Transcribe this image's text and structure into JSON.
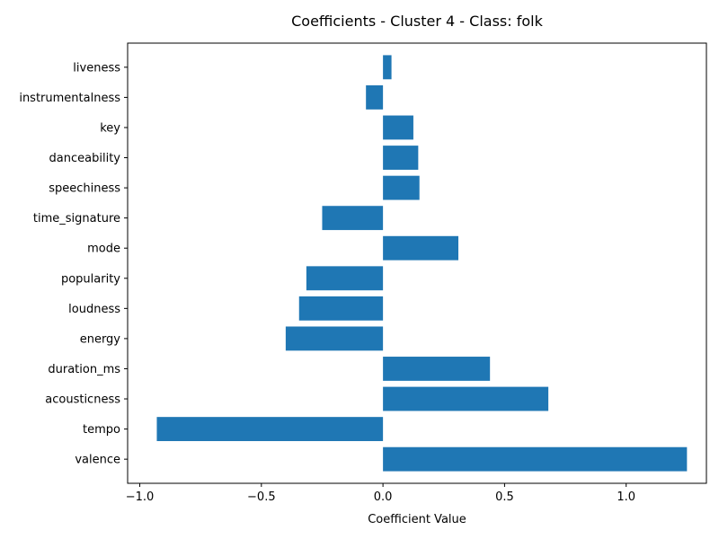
{
  "chart_data": {
    "type": "bar",
    "orientation": "horizontal",
    "title": "Coefficients - Cluster 4 - Class: folk",
    "xlabel": "Coefficient Value",
    "ylabel": "",
    "xlim": [
      -1.05,
      1.33
    ],
    "xticks": [
      -1.0,
      -0.5,
      0.0,
      0.5,
      1.0
    ],
    "xtick_labels": [
      "−1.0",
      "−0.5",
      "0.0",
      "0.5",
      "1.0"
    ],
    "categories": [
      "valence",
      "tempo",
      "acousticness",
      "duration_ms",
      "energy",
      "loudness",
      "popularity",
      "mode",
      "time_signature",
      "speechiness",
      "danceability",
      "key",
      "instrumentalness",
      "liveness"
    ],
    "values": [
      1.25,
      -0.93,
      0.68,
      0.44,
      -0.4,
      -0.345,
      -0.315,
      0.31,
      -0.25,
      0.15,
      0.145,
      0.125,
      -0.07,
      0.035
    ],
    "bar_color": "#1f77b4",
    "grid": false,
    "legend": "none"
  }
}
